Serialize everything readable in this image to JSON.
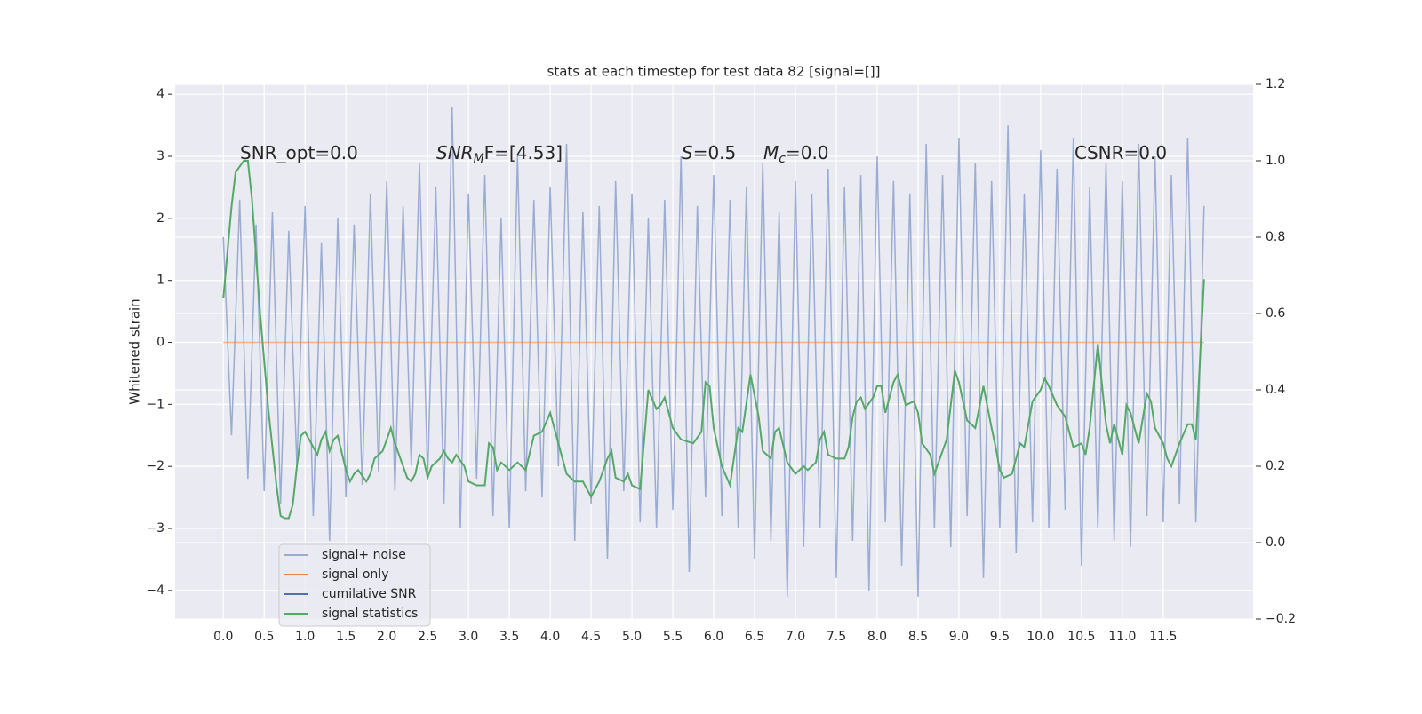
{
  "chart_data": {
    "type": "line",
    "title": "stats at each timestep for test data 82 [signal=[]]",
    "ylabel": "Whitened strain",
    "xlim": [
      -0.59,
      12.6
    ],
    "ylim": [
      -4.46,
      4.16
    ],
    "y2lim": [
      -0.2,
      1.2
    ],
    "xticks": [
      {
        "value": 0,
        "label": "0.0"
      },
      0.5,
      {
        "value": 1,
        "label": "1.0"
      },
      1.5,
      {
        "value": 2,
        "label": "2.0"
      },
      2.5,
      {
        "value": 3,
        "label": "3.0"
      },
      3.5,
      {
        "value": 4,
        "label": "4.0"
      },
      4.5,
      {
        "value": 5,
        "label": "5.0"
      },
      5.5,
      {
        "value": 6,
        "label": "6.0"
      },
      6.5,
      {
        "value": 7,
        "label": "7.0"
      },
      7.5,
      {
        "value": 8,
        "label": "8.0"
      },
      8.5,
      {
        "value": 9,
        "label": "9.0"
      },
      9.5,
      {
        "value": 10,
        "label": "10.0"
      },
      10.5,
      {
        "value": 11,
        "label": "11.0"
      },
      11.5
    ],
    "yticks": [
      {
        "value": -4,
        "label": "−4"
      },
      {
        "value": -3,
        "label": "−3"
      },
      {
        "value": -2,
        "label": "−2"
      },
      {
        "value": -1,
        "label": "−1"
      },
      0,
      1,
      2,
      3,
      4
    ],
    "y2ticks": [
      {
        "value": -0.2,
        "label": "−0.2"
      },
      {
        "value": 0,
        "label": "0.0"
      },
      0.2,
      0.4,
      0.6,
      0.8,
      {
        "value": 1,
        "label": "1.0"
      },
      1.2
    ],
    "grid": true,
    "legend": "lower left",
    "annotations": [
      {
        "parts": [
          {
            "text": "SNR_opt=0.0",
            "style": "normal"
          }
        ]
      },
      {
        "parts": [
          {
            "text": "SNR",
            "style": "italic"
          },
          {
            "text": "M",
            "style": "italic-sub"
          },
          {
            "text": "F=[4.53]",
            "style": "normal"
          }
        ]
      },
      {
        "parts": [
          {
            "text": "S",
            "style": "italic"
          },
          {
            "text": "=0.5",
            "style": "normal"
          }
        ]
      },
      {
        "parts": [
          {
            "text": "M",
            "style": "italic"
          },
          {
            "text": "c",
            "style": "italic-sub"
          },
          {
            "text": "=0.0",
            "style": "normal"
          }
        ]
      },
      {
        "parts": [
          {
            "text": "CSNR=0.0",
            "style": "normal"
          }
        ]
      }
    ],
    "series": [
      {
        "name": "signal+ noise",
        "color": "#9aacd2",
        "x": [
          0,
          0.1,
          0.2,
          0.3,
          0.4,
          0.5,
          0.6,
          0.7,
          0.8,
          0.9,
          1,
          1.1,
          1.2,
          1.3,
          1.4,
          1.5,
          1.6,
          1.7,
          1.8,
          1.9,
          2,
          2.1,
          2.2,
          2.3,
          2.4,
          2.5,
          2.6,
          2.7,
          2.8,
          2.9,
          3,
          3.1,
          3.2,
          3.3,
          3.4,
          3.5,
          3.6,
          3.7,
          3.8,
          3.9,
          4,
          4.1,
          4.2,
          4.3,
          4.4,
          4.5,
          4.6,
          4.7,
          4.8,
          4.9,
          5,
          5.1,
          5.2,
          5.3,
          5.4,
          5.5,
          5.6,
          5.7,
          5.8,
          5.9,
          6,
          6.1,
          6.2,
          6.3,
          6.4,
          6.5,
          6.6,
          6.7,
          6.8,
          6.9,
          7,
          7.1,
          7.2,
          7.3,
          7.4,
          7.5,
          7.6,
          7.7,
          7.8,
          7.9,
          8,
          8.1,
          8.2,
          8.3,
          8.4,
          8.5,
          8.6,
          8.7,
          8.8,
          8.9,
          9,
          9.1,
          9.2,
          9.3,
          9.4,
          9.5,
          9.6,
          9.7,
          9.8,
          9.9,
          10,
          10.1,
          10.2,
          10.3,
          10.4,
          10.5,
          10.6,
          10.7,
          10.8,
          10.9,
          11,
          11.1,
          11.2,
          11.3,
          11.4,
          11.5,
          11.6,
          11.7,
          11.8,
          11.9,
          12
        ],
        "values": [
          1.7,
          -1.5,
          2.3,
          -2.2,
          1.9,
          -2.4,
          2.1,
          -2.6,
          1.8,
          -2.0,
          2.2,
          -2.8,
          1.6,
          -3.2,
          2.0,
          -2.5,
          1.9,
          -2.3,
          2.4,
          -2.1,
          2.6,
          -2.4,
          2.2,
          -2.0,
          2.9,
          -2.2,
          2.5,
          -2.6,
          3.8,
          -3.0,
          2.4,
          -2.2,
          2.7,
          -2.8,
          2.0,
          -3.0,
          3.0,
          -2.4,
          2.3,
          -2.5,
          2.5,
          -2.0,
          3.2,
          -3.2,
          2.1,
          -2.6,
          2.2,
          -3.5,
          2.6,
          -2.4,
          2.4,
          -2.9,
          2.0,
          -3.0,
          2.3,
          -2.7,
          3.0,
          -3.7,
          2.2,
          -2.5,
          2.7,
          -2.8,
          2.3,
          -3.0,
          2.5,
          -3.5,
          2.9,
          -3.2,
          2.1,
          -4.1,
          2.6,
          -3.3,
          2.4,
          -3.0,
          2.8,
          -3.8,
          2.5,
          -3.2,
          2.7,
          -4.0,
          3.0,
          -2.9,
          2.6,
          -3.6,
          2.4,
          -4.1,
          3.2,
          -3.0,
          2.7,
          -3.3,
          3.3,
          -2.8,
          2.9,
          -3.8,
          2.6,
          -3.0,
          3.5,
          -3.4,
          2.4,
          -2.9,
          3.1,
          -3.0,
          2.8,
          -2.7,
          3.3,
          -3.6,
          2.5,
          -3.0,
          2.9,
          -3.2,
          2.6,
          -3.3,
          3.2,
          -2.8,
          3.0,
          -2.9,
          2.7,
          -2.6,
          3.3,
          -2.9,
          2.2
        ]
      },
      {
        "name": "signal only",
        "color": "#dd8452",
        "x": [
          0,
          12
        ],
        "values": [
          0,
          0
        ]
      },
      {
        "name": "cumilative SNR",
        "color": "#4c72b0",
        "x": [],
        "values": []
      },
      {
        "name": "signal statistics",
        "color": "#55a868",
        "axis": "y2",
        "x": [
          0,
          0.1,
          0.15,
          0.25,
          0.3,
          0.35,
          0.45,
          0.55,
          0.65,
          0.7,
          0.75,
          0.8,
          0.85,
          0.9,
          0.95,
          1.0,
          1.1,
          1.15,
          1.2,
          1.25,
          1.3,
          1.35,
          1.4,
          1.5,
          1.55,
          1.6,
          1.65,
          1.75,
          1.8,
          1.85,
          1.95,
          2.0,
          2.05,
          2.1,
          2.15,
          2.25,
          2.3,
          2.35,
          2.4,
          2.45,
          2.5,
          2.55,
          2.65,
          2.7,
          2.75,
          2.8,
          2.85,
          2.95,
          3.0,
          3.1,
          3.2,
          3.25,
          3.3,
          3.35,
          3.4,
          3.5,
          3.6,
          3.7,
          3.8,
          3.9,
          4.0,
          4.1,
          4.2,
          4.3,
          4.4,
          4.5,
          4.6,
          4.7,
          4.75,
          4.8,
          4.9,
          4.95,
          5.0,
          5.1,
          5.2,
          5.3,
          5.35,
          5.4,
          5.5,
          5.6,
          5.75,
          5.85,
          5.9,
          5.95,
          6.0,
          6.1,
          6.2,
          6.3,
          6.35,
          6.45,
          6.55,
          6.6,
          6.7,
          6.75,
          6.8,
          6.9,
          7.0,
          7.1,
          7.15,
          7.25,
          7.3,
          7.35,
          7.4,
          7.5,
          7.6,
          7.65,
          7.7,
          7.75,
          7.8,
          7.85,
          7.95,
          8.0,
          8.05,
          8.1,
          8.2,
          8.25,
          8.35,
          8.45,
          8.5,
          8.55,
          8.65,
          8.7,
          8.8,
          8.85,
          8.95,
          9.0,
          9.1,
          9.2,
          9.3,
          9.4,
          9.45,
          9.5,
          9.55,
          9.65,
          9.75,
          9.8,
          9.9,
          10.0,
          10.05,
          10.1,
          10.2,
          10.3,
          10.4,
          10.5,
          10.55,
          10.6,
          10.7,
          10.8,
          10.85,
          10.9,
          11.0,
          11.05,
          11.1,
          11.2,
          11.3,
          11.35,
          11.4,
          11.5,
          11.55,
          11.6,
          11.7,
          11.8,
          11.85,
          11.9,
          12.0
        ],
        "values": [
          0.64,
          0.88,
          0.97,
          1.0,
          1.0,
          0.9,
          0.6,
          0.35,
          0.15,
          0.07,
          0.064,
          0.064,
          0.1,
          0.2,
          0.28,
          0.29,
          0.25,
          0.23,
          0.27,
          0.29,
          0.24,
          0.27,
          0.28,
          0.19,
          0.16,
          0.18,
          0.19,
          0.16,
          0.18,
          0.22,
          0.24,
          0.27,
          0.3,
          0.26,
          0.23,
          0.17,
          0.16,
          0.18,
          0.23,
          0.22,
          0.17,
          0.2,
          0.22,
          0.24,
          0.22,
          0.21,
          0.23,
          0.2,
          0.16,
          0.15,
          0.15,
          0.26,
          0.25,
          0.19,
          0.21,
          0.19,
          0.21,
          0.19,
          0.28,
          0.29,
          0.34,
          0.26,
          0.18,
          0.16,
          0.16,
          0.12,
          0.16,
          0.22,
          0.24,
          0.17,
          0.16,
          0.18,
          0.15,
          0.14,
          0.4,
          0.35,
          0.36,
          0.38,
          0.3,
          0.27,
          0.26,
          0.29,
          0.42,
          0.41,
          0.3,
          0.2,
          0.15,
          0.3,
          0.29,
          0.44,
          0.33,
          0.24,
          0.22,
          0.29,
          0.3,
          0.21,
          0.18,
          0.2,
          0.19,
          0.21,
          0.27,
          0.29,
          0.23,
          0.22,
          0.22,
          0.25,
          0.33,
          0.37,
          0.38,
          0.35,
          0.38,
          0.41,
          0.41,
          0.34,
          0.42,
          0.44,
          0.36,
          0.37,
          0.34,
          0.26,
          0.23,
          0.18,
          0.24,
          0.27,
          0.45,
          0.42,
          0.32,
          0.3,
          0.41,
          0.3,
          0.25,
          0.19,
          0.17,
          0.18,
          0.26,
          0.25,
          0.37,
          0.4,
          0.43,
          0.41,
          0.36,
          0.33,
          0.25,
          0.26,
          0.23,
          0.3,
          0.52,
          0.31,
          0.26,
          0.31,
          0.23,
          0.36,
          0.34,
          0.26,
          0.39,
          0.37,
          0.3,
          0.26,
          0.22,
          0.2,
          0.26,
          0.31,
          0.31,
          0.27,
          0.69
        ]
      }
    ]
  }
}
